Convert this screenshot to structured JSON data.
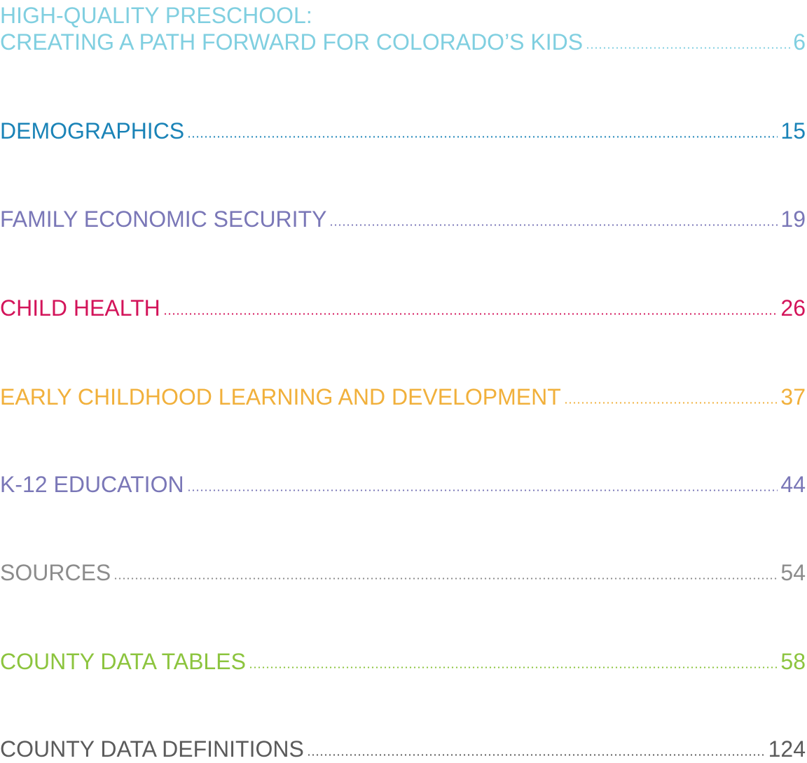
{
  "toc": {
    "entries": [
      {
        "lines": [
          "HIGH-QUALITY PRESCHOOL:",
          "CREATING A PATH FORWARD FOR COLORADO’S KIDS"
        ],
        "page": 6,
        "color": "#80cfe0"
      },
      {
        "lines": [
          "DEMOGRAPHICS"
        ],
        "page": 15,
        "color": "#1a83b7"
      },
      {
        "lines": [
          "FAMILY ECONOMIC SECURITY"
        ],
        "page": 19,
        "color": "#7a77b7"
      },
      {
        "lines": [
          "CHILD HEALTH"
        ],
        "page": 26,
        "color": "#d3145a"
      },
      {
        "lines": [
          "EARLY CHILDHOOD LEARNING AND DEVELOPMENT"
        ],
        "page": 37,
        "color": "#f1b03b"
      },
      {
        "lines": [
          "K-12 EDUCATION"
        ],
        "page": 44,
        "color": "#7a77b7"
      },
      {
        "lines": [
          "SOURCES"
        ],
        "page": 54,
        "color": "#8c8c8c"
      },
      {
        "lines": [
          "COUNTY DATA TABLES"
        ],
        "page": 58,
        "color": "#8cc43e"
      },
      {
        "lines": [
          "COUNTY DATA DEFINITIONS"
        ],
        "page": 124,
        "color": "#5b5b5b"
      }
    ]
  }
}
